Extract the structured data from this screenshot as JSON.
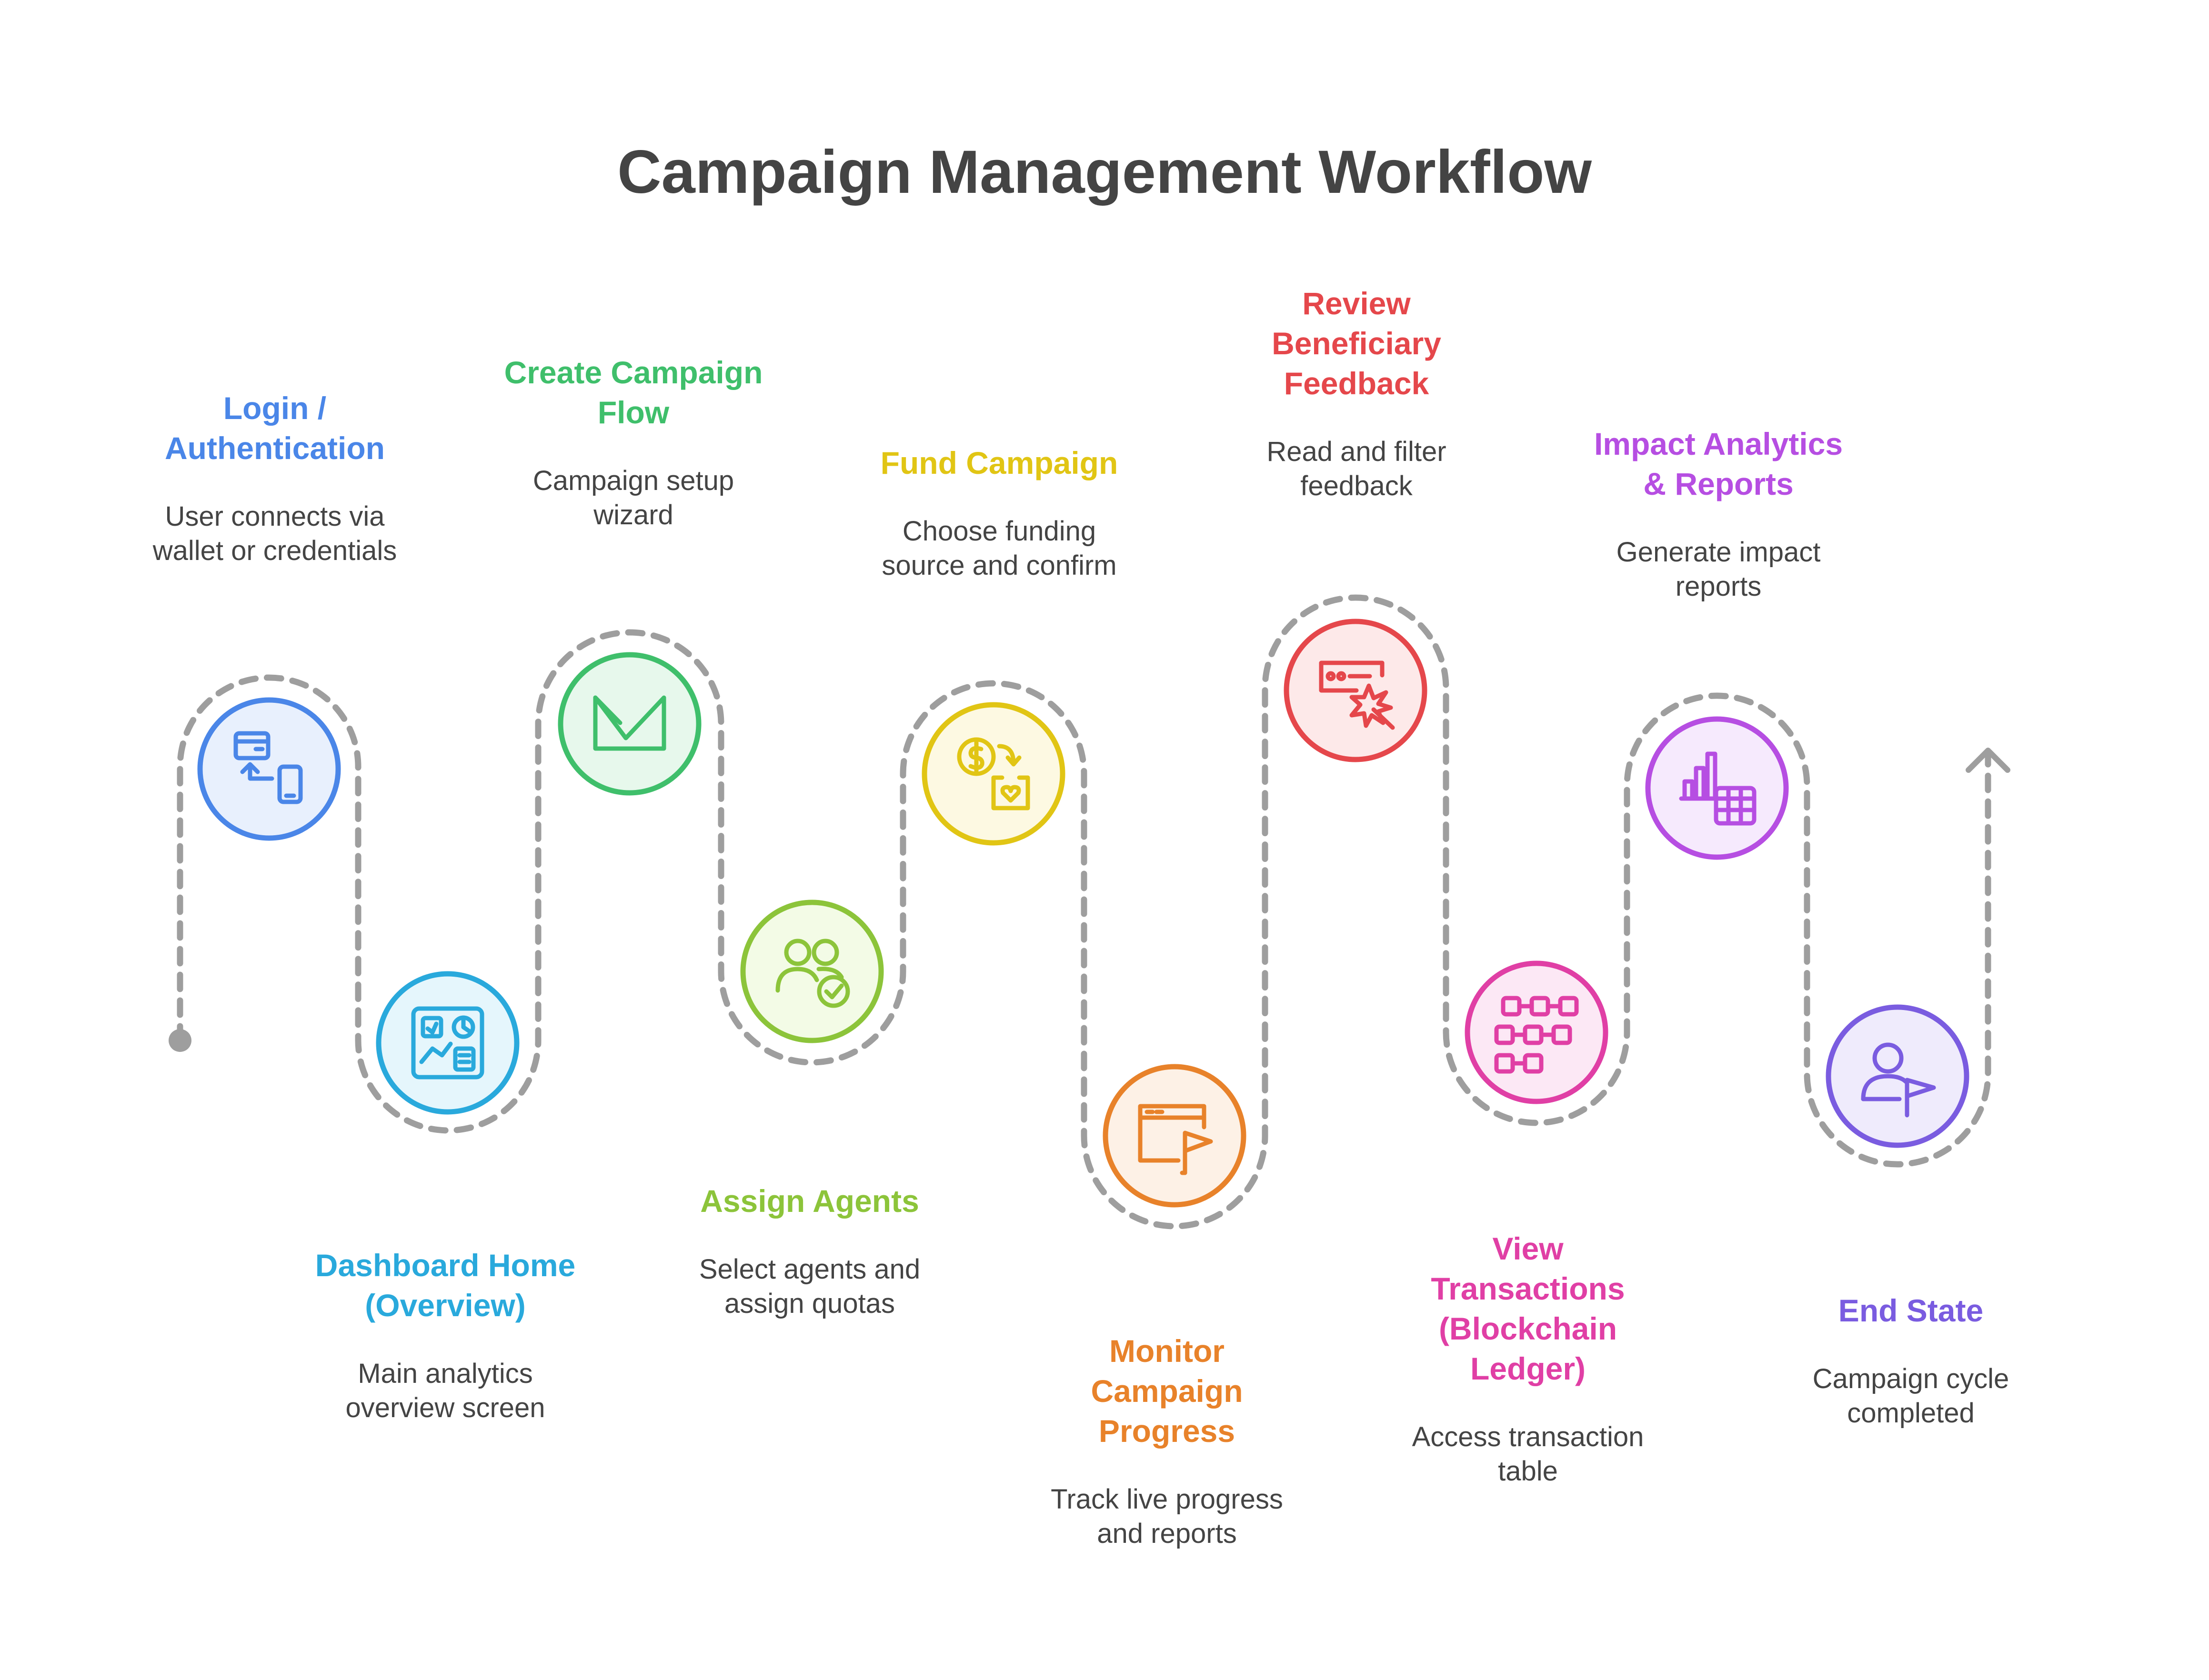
{
  "title": "Campaign Management Workflow",
  "steps": [
    {
      "id": "login",
      "title": [
        "Login /",
        "Authentication"
      ],
      "description": [
        "User connects via",
        "wallet or credentials"
      ],
      "color": "#4a86e8",
      "fill": "#e8f0fd",
      "icon": "wallet-to-phone-icon"
    },
    {
      "id": "dashboard",
      "title": [
        "Dashboard Home",
        "(Overview)"
      ],
      "description": [
        "Main analytics",
        "overview screen"
      ],
      "color": "#29a9dc",
      "fill": "#e5f6fc",
      "icon": "dashboard-icon"
    },
    {
      "id": "create",
      "title": [
        "Create Campaign",
        "Flow"
      ],
      "description": [
        "Campaign setup",
        "wizard"
      ],
      "color": "#3fbf6b",
      "fill": "#e7f8ec",
      "icon": "campaign-flow-icon"
    },
    {
      "id": "assign",
      "title": [
        "Assign Agents"
      ],
      "description": [
        "Select agents and",
        "assign quotas"
      ],
      "color": "#8cc43a",
      "fill": "#f3fbe6",
      "icon": "users-check-icon"
    },
    {
      "id": "fund",
      "title": [
        "Fund Campaign"
      ],
      "description": [
        "Choose funding",
        "source and confirm"
      ],
      "color": "#e1c514",
      "fill": "#fdf9e2",
      "icon": "coin-transfer-icon"
    },
    {
      "id": "monitor",
      "title": [
        "Monitor",
        "Campaign",
        "Progress"
      ],
      "description": [
        "Track live progress",
        "and reports"
      ],
      "color": "#e8822a",
      "fill": "#fdf1e6",
      "icon": "browser-flag-icon"
    },
    {
      "id": "review",
      "title": [
        "Review",
        "Beneficiary",
        "Feedback"
      ],
      "description": [
        "Read and filter",
        "feedback"
      ],
      "color": "#e5474b",
      "fill": "#fde9e9",
      "icon": "feedback-click-icon"
    },
    {
      "id": "transactions",
      "title": [
        "View",
        "Transactions",
        "(Blockchain",
        "Ledger)"
      ],
      "description": [
        "Access transaction",
        "table"
      ],
      "color": "#e03fa5",
      "fill": "#fce8f5",
      "icon": "blockchain-icon"
    },
    {
      "id": "analytics",
      "title": [
        "Impact Analytics",
        "& Reports"
      ],
      "description": [
        "Generate impact",
        "reports"
      ],
      "color": "#b64ee2",
      "fill": "#f6eafd",
      "icon": "analytics-report-icon"
    },
    {
      "id": "end",
      "title": [
        "End State"
      ],
      "description": [
        "Campaign cycle",
        "completed"
      ],
      "color": "#7a5ce0",
      "fill": "#efebfc",
      "icon": "user-flag-icon"
    }
  ]
}
